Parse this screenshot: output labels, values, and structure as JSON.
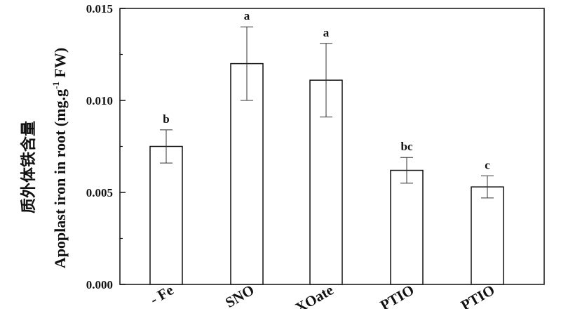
{
  "chart_data": {
    "type": "bar",
    "ylabel_zh": "质外体铁含量",
    "ylabel": {
      "prefix": "Apoplast iron in root (mg.g",
      "sup": "-1",
      "suffix": " FW)"
    },
    "ylim": [
      0.0,
      0.015
    ],
    "yticks": [
      "0.000",
      "0.005",
      "0.010",
      "0.015"
    ],
    "grid": false,
    "categories": [
      "- Fe",
      "SNO",
      "XOate",
      "PTIO",
      "PTIO"
    ],
    "values": [
      0.0075,
      0.012,
      0.0111,
      0.0062,
      0.0053
    ],
    "errors": [
      0.0009,
      0.002,
      0.002,
      0.0007,
      0.0006
    ],
    "significance": [
      "b",
      "a",
      "a",
      "bc",
      "c"
    ]
  }
}
